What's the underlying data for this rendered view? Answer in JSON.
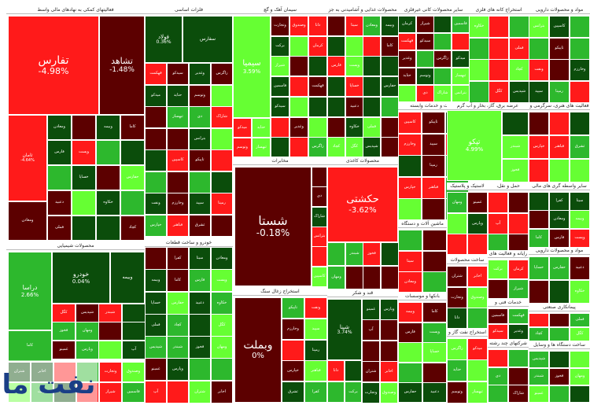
{
  "colors": {
    "dark_red": "#5c0000",
    "red": "#ff1a1a",
    "dark_green": "#0b4d0b",
    "green": "#2db82d",
    "light_green": "#66ff33",
    "white": "#ffffff"
  },
  "sectors": [
    "فعالیتهای کمکی به نهادهای مالی واسط",
    "فلزات اساسی",
    "سیمان آهک و گچ",
    "محصولات غذایی و آشامیدنی به جز قند و شکر",
    "سایر محصولات کانی غیرفلزی",
    "استخراج کانه های فلزی",
    "مواد و محصولات دارویی",
    "محصولات شیمیایی",
    "خودرو و ساخت قطعات",
    "مخابرات",
    "استخراج زغال سنگ",
    "محصولات کاغذی",
    "قند و شکر",
    "زراعت و خدمات وابسته",
    "ماشین آلات و دستگاه های برقی",
    "بانکها و موسسات اعتباری",
    "عرضه برق، گاز، بخار و آب گرم",
    "لاستیک و پلاستیک",
    "حمل و نقل، انبارداری و ارتباطات",
    "ساخت محصولات فلزی",
    "رایانه و فعالیت های وابسته به آن",
    "خدمات فنی و مهندسی",
    "استخراج نفت گاز و خدمات جنبی جز اکتشاف",
    "شرکتهای چند رشته ای صنعتی",
    "فعالیت های هنری، سرگرمی و خلاقانه",
    "سایر واسطه گری های مالی",
    "مواد و محصولات دارویی",
    "پیمانکاری صنعتی",
    "ساخت دستگاه ها و وسایل ارتباطی",
    "سرمایه گذاری ها",
    "فرآورده های نفتی، کک و سوخت هسته ای",
    "بیمه و صندوق بازنشستگی به جز تامین اجتماعی",
    "انبوه سازی، املاک و مستغلات",
    "منسوجات",
    "کاشی و سرامیک",
    "استخراج سایر معادن",
    "هتل و رستوران",
    "محصولات چوبی"
  ],
  "labeled_tiles": [
    {
      "ticker": "تفارس",
      "change": "-4.98%"
    },
    {
      "ticker": "تشاهد",
      "change": "-1.48%"
    },
    {
      "ticker": "ثامان",
      "change": "-4.64%"
    },
    {
      "ticker": "فولاد",
      "change": "0.36%"
    },
    {
      "ticker": "سفارس",
      "change": ""
    },
    {
      "ticker": "سیمیا",
      "change": "3.59%"
    },
    {
      "ticker": "شستا",
      "change": "-0.18%"
    },
    {
      "ticker": "حکشتی",
      "change": "-3.62%"
    },
    {
      "ticker": "دراسا",
      "change": "2.66%"
    },
    {
      "ticker": "خودرو",
      "change": "0.04%"
    },
    {
      "ticker": "وبملت",
      "change": "0%"
    },
    {
      "ticker": "شپنا",
      "change": "3.74%"
    },
    {
      "ticker": "تپکو",
      "change": "4.99%"
    }
  ],
  "small_tickers": [
    "ومعادن",
    "وبیمه",
    "کاما",
    "فارس",
    "وپست",
    "خساپا",
    "حفارس",
    "دعبید",
    "خکاوه",
    "فملی",
    "کچاد",
    "کگل",
    "شپدیس",
    "شبندر",
    "فخوز",
    "ومهان",
    "غمینو",
    "وپارس",
    "آپ",
    "شتران",
    "اخابر",
    "وتجارت",
    "وصندوق",
    "دانا",
    "برکت",
    "کرمان",
    "شیراز",
    "فاسمین",
    "قهکمت",
    "سیدکو",
    "وغدیر",
    "زاگرس",
    "میدکو",
    "حتاید",
    "وتوسم",
    "ثبهساز",
    "دی",
    "شاراک",
    "بترانس",
    "کاسپین",
    "تاپیکو",
    "ونفت",
    "وخارزم",
    "سپید",
    "رمپنا",
    "خپارس",
    "فباهنر",
    "ثشرق",
    "کفرا",
    "سیتا"
  ],
  "watermark": "نفت ما"
}
